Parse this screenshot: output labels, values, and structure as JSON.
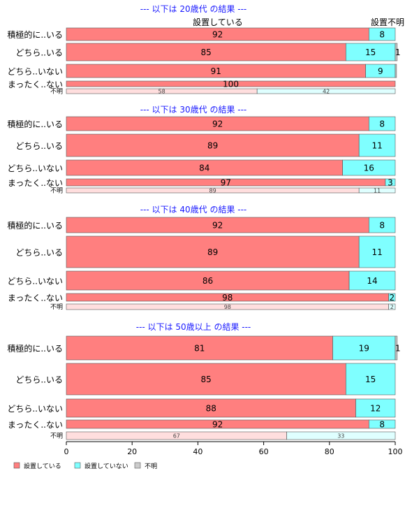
{
  "chart_data": {
    "type": "bar",
    "orientation": "horizontal",
    "stacked": true,
    "xlim": [
      0,
      100
    ],
    "x_ticks": [
      0,
      20,
      40,
      60,
      80,
      100
    ],
    "header_labels": [
      "設置している",
      "設置不明"
    ],
    "colors": {
      "設置している": "#ff7f7f",
      "設置していない": "#7fffff",
      "不明": "#cccccc",
      "title": "#1a1aff"
    },
    "legend": {
      "placement": "bottom-left",
      "entries": [
        "設置している",
        "設置していない",
        "不明"
      ]
    },
    "panels": [
      {
        "title": "--- 以下は 20歳代 の結果 ---",
        "rows": [
          {
            "label": "積極的に..いる",
            "values": [
              92,
              8,
              0
            ],
            "labels": [
              "92",
              "8",
              ""
            ]
          },
          {
            "label": "どちら..いる",
            "values": [
              85,
              15,
              0.6
            ],
            "labels": [
              "85",
              "15",
              "1"
            ]
          },
          {
            "label": "どちら..いない",
            "values": [
              91,
              9,
              0.4
            ],
            "labels": [
              "91",
              "9",
              ""
            ]
          },
          {
            "label": "まったく..ない",
            "values": [
              100,
              0,
              0
            ],
            "labels": [
              "100",
              "",
              ""
            ]
          },
          {
            "label": "不明",
            "values": [
              58,
              42,
              0
            ],
            "labels": [
              "58",
              "42",
              ""
            ],
            "unknown": true
          }
        ]
      },
      {
        "title": "--- 以下は 30歳代 の結果 ---",
        "rows": [
          {
            "label": "積極的に..いる",
            "values": [
              92,
              8,
              0
            ],
            "labels": [
              "92",
              "8",
              ""
            ]
          },
          {
            "label": "どちら..いる",
            "values": [
              89,
              11,
              0
            ],
            "labels": [
              "89",
              "11",
              ""
            ]
          },
          {
            "label": "どちら..いない",
            "values": [
              84,
              16,
              0
            ],
            "labels": [
              "84",
              "16",
              ""
            ]
          },
          {
            "label": "まったく..ない",
            "values": [
              97,
              3,
              0
            ],
            "labels": [
              "97",
              "3",
              ""
            ]
          },
          {
            "label": "不明",
            "values": [
              89,
              11,
              0
            ],
            "labels": [
              "89",
              "11",
              ""
            ],
            "unknown": true
          }
        ]
      },
      {
        "title": "--- 以下は 40歳代 の結果 ---",
        "rows": [
          {
            "label": "積極的に..いる",
            "values": [
              92,
              8,
              0
            ],
            "labels": [
              "92",
              "8",
              ""
            ]
          },
          {
            "label": "どちら..いる",
            "values": [
              89,
              11,
              0
            ],
            "labels": [
              "89",
              "11",
              ""
            ]
          },
          {
            "label": "どちら..いない",
            "values": [
              86,
              14,
              0
            ],
            "labels": [
              "86",
              "14",
              ""
            ]
          },
          {
            "label": "まったく..ない",
            "values": [
              98,
              2,
              0
            ],
            "labels": [
              "98",
              "2",
              ""
            ]
          },
          {
            "label": "不明",
            "values": [
              98,
              2,
              0
            ],
            "labels": [
              "98",
              "2",
              ""
            ],
            "unknown": true
          }
        ]
      },
      {
        "title": "--- 以下は 50歳以上 の結果 ---",
        "rows": [
          {
            "label": "積極的に..いる",
            "values": [
              81,
              19,
              0.6
            ],
            "labels": [
              "81",
              "19",
              "1"
            ]
          },
          {
            "label": "どちら..いる",
            "values": [
              85,
              15,
              0
            ],
            "labels": [
              "85",
              "15",
              ""
            ]
          },
          {
            "label": "どちら..いない",
            "values": [
              88,
              12,
              0
            ],
            "labels": [
              "88",
              "12",
              ""
            ]
          },
          {
            "label": "まったく..ない",
            "values": [
              92,
              8,
              0
            ],
            "labels": [
              "92",
              "8",
              ""
            ]
          },
          {
            "label": "不明",
            "values": [
              67,
              33,
              0
            ],
            "labels": [
              "67",
              "33",
              ""
            ],
            "unknown": true
          }
        ]
      }
    ]
  }
}
